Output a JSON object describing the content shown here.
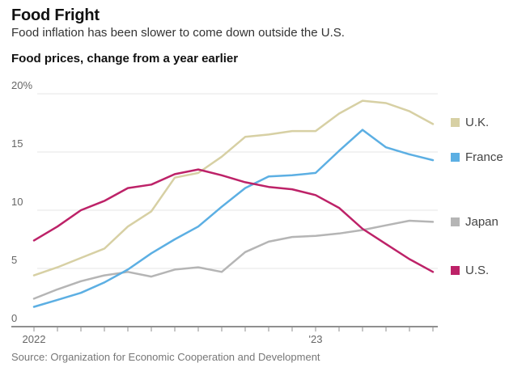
{
  "header": {
    "title": "Food Fright",
    "subtitle": "Food inflation has been slower to come down outside the U.S."
  },
  "chart_label": "Food prices, change from a year earlier",
  "source": "Source: Organization for Economic Cooperation and Development",
  "chart_data": {
    "type": "line",
    "title": "Food prices, change from a year earlier",
    "x": [
      "Jan 2022",
      "Feb 2022",
      "Mar 2022",
      "Apr 2022",
      "May 2022",
      "Jun 2022",
      "Jul 2022",
      "Aug 2022",
      "Sep 2022",
      "Oct 2022",
      "Nov 2022",
      "Dec 2022",
      "Jan 2023",
      "Feb 2023",
      "Mar 2023",
      "Apr 2023",
      "May 2023",
      "Jun 2023"
    ],
    "x_axis_labels": [
      {
        "index": 0,
        "label": "2022"
      },
      {
        "index": 12,
        "label": "'23"
      }
    ],
    "ylim": [
      0,
      20
    ],
    "yticks": [
      {
        "value": 0,
        "label": "0"
      },
      {
        "value": 5,
        "label": "5"
      },
      {
        "value": 10,
        "label": "10"
      },
      {
        "value": 15,
        "label": "15"
      },
      {
        "value": 20,
        "label": "20%"
      }
    ],
    "grid": true,
    "legend_position": "right",
    "series": [
      {
        "name": "U.K.",
        "color": "#d7d0a4",
        "values": [
          4.4,
          5.1,
          5.9,
          6.7,
          8.6,
          9.9,
          12.8,
          13.2,
          14.6,
          16.3,
          16.5,
          16.8,
          16.8,
          18.3,
          19.4,
          19.2,
          18.5,
          17.4
        ]
      },
      {
        "name": "France",
        "color": "#5cafe3",
        "values": [
          1.7,
          2.3,
          2.9,
          3.8,
          4.9,
          6.3,
          7.5,
          8.6,
          10.3,
          11.9,
          12.9,
          13.0,
          13.2,
          15.1,
          16.9,
          15.4,
          14.8,
          14.3
        ]
      },
      {
        "name": "Japan",
        "color": "#b5b5b5",
        "values": [
          2.4,
          3.2,
          3.9,
          4.4,
          4.7,
          4.3,
          4.9,
          5.1,
          4.7,
          6.4,
          7.3,
          7.7,
          7.8,
          8.0,
          8.3,
          8.7,
          9.1,
          9.0
        ]
      },
      {
        "name": "U.S.",
        "color": "#bd2268",
        "values": [
          7.4,
          8.6,
          10.0,
          10.8,
          11.9,
          12.2,
          13.1,
          13.5,
          13.0,
          12.4,
          12.0,
          11.8,
          11.3,
          10.2,
          8.4,
          7.1,
          5.8,
          4.7
        ]
      }
    ]
  },
  "legend": {
    "uk_label": "U.K.",
    "france_label": "France",
    "japan_label": "Japan",
    "us_label": "U.S."
  }
}
